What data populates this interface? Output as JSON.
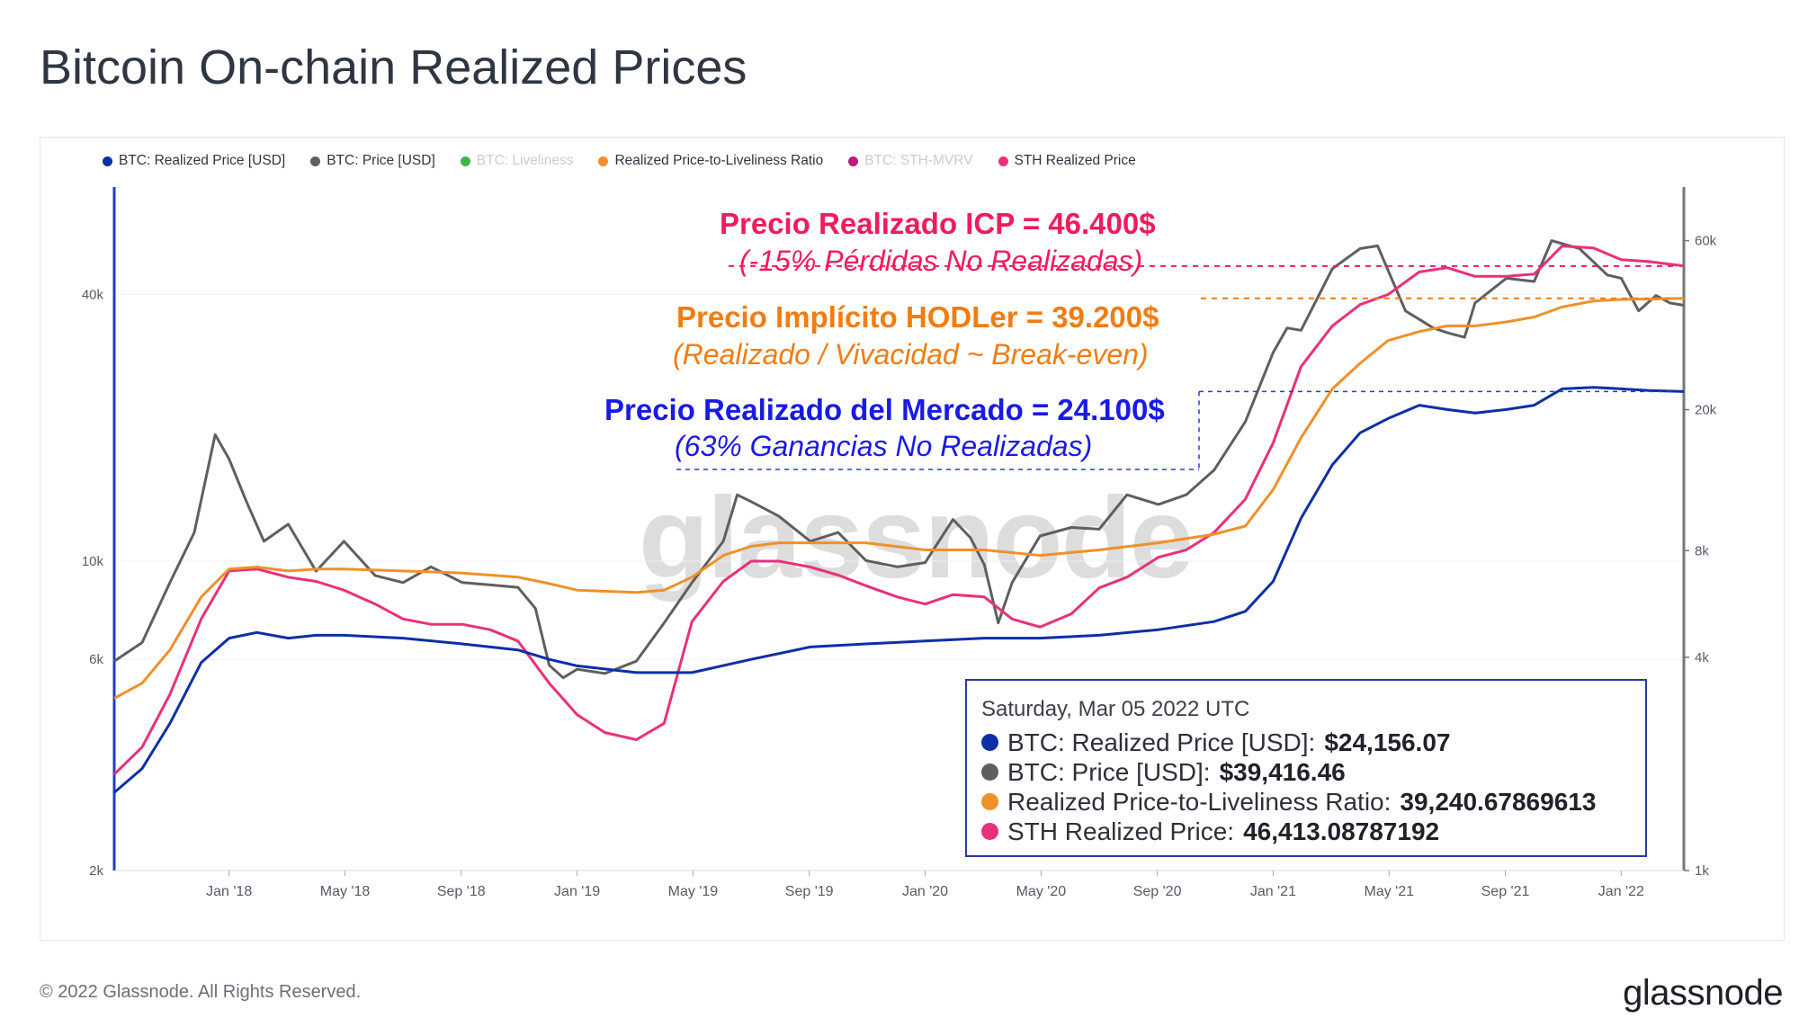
{
  "title": "Bitcoin On-chain Realized Prices",
  "legend": [
    {
      "label": "BTC: Realized Price [USD]",
      "color": "#0d2fa6",
      "active": true
    },
    {
      "label": "BTC: Price [USD]",
      "color": "#5f5f5f",
      "active": true
    },
    {
      "label": "BTC: Liveliness",
      "color": "#3fb34a",
      "active": false
    },
    {
      "label": "Realized Price-to-Liveliness Ratio",
      "color": "#f0902a",
      "active": true
    },
    {
      "label": "BTC: STH-MVRV",
      "color": "#c0177a",
      "active": false
    },
    {
      "label": "STH Realized Price",
      "color": "#e8317a",
      "active": true
    }
  ],
  "annotations": {
    "sth_title": "Precio Realizado ICP = 46.400$",
    "sth_sub": "(-15% Pérdidas No Realizadas)",
    "hodl_title": "Precio Implícito HODLer = 39.200$",
    "hodl_sub": "(Realizado / Vivacidad ~ Break-even)",
    "rp_title": "Precio Realizado del Mercado = 24.100$",
    "rp_sub": "(63% Ganancias No Realizadas)"
  },
  "tooltip": {
    "date": "Saturday, Mar 05 2022 UTC",
    "rows": [
      {
        "label": "BTC: Realized Price [USD]:",
        "value": "$24,156.07",
        "color": "#0d2fa6"
      },
      {
        "label": "BTC: Price [USD]:",
        "value": "$39,416.46",
        "color": "#5f5f5f"
      },
      {
        "label": "Realized Price-to-Liveliness Ratio:",
        "value": "39,240.67869613",
        "color": "#f0902a"
      },
      {
        "label": "STH Realized Price:",
        "value": "46,413.08787192",
        "color": "#e8317a"
      }
    ]
  },
  "watermark": "glassnode",
  "footer": "© 2022 Glassnode. All Rights Reserved.",
  "brand": "glassnode",
  "colors": {
    "realized": "#0d2fa6",
    "price": "#5f5f5f",
    "ratio": "#f0902a",
    "sth": "#e8317a",
    "sth_text": "#ef1c5c",
    "hodl_text": "#f07d12",
    "rp_text": "#1a1ae6"
  },
  "chart_data": {
    "type": "line",
    "title": "Bitcoin On-chain Realized Prices",
    "x_start": 2017.67,
    "x_end": 2022.18,
    "x_ticks": [
      {
        "label": "Jan '18",
        "t": 2018.0
      },
      {
        "label": "May '18",
        "t": 2018.333
      },
      {
        "label": "Sep '18",
        "t": 2018.667
      },
      {
        "label": "Jan '19",
        "t": 2019.0
      },
      {
        "label": "May '19",
        "t": 2019.333
      },
      {
        "label": "Sep '19",
        "t": 2019.667
      },
      {
        "label": "Jan '20",
        "t": 2020.0
      },
      {
        "label": "May '20",
        "t": 2020.333
      },
      {
        "label": "Sep '20",
        "t": 2020.667
      },
      {
        "label": "Jan '21",
        "t": 2021.0
      },
      {
        "label": "May '21",
        "t": 2021.333
      },
      {
        "label": "Sep '21",
        "t": 2021.667
      },
      {
        "label": "Jan '22",
        "t": 2022.0
      }
    ],
    "y_left": {
      "scale": "log",
      "range": [
        2000,
        70000
      ],
      "ticks": [
        {
          "label": "2k",
          "v": 2000
        },
        {
          "label": "6k",
          "v": 6000
        },
        {
          "label": "10k",
          "v": 10000
        },
        {
          "label": "40k",
          "v": 40000
        }
      ]
    },
    "y_right": {
      "scale": "log",
      "range": [
        1000,
        85000
      ],
      "ticks": [
        {
          "label": "1k",
          "v": 1000
        },
        {
          "label": "4k",
          "v": 4000
        },
        {
          "label": "8k",
          "v": 8000
        },
        {
          "label": "20k",
          "v": 20000
        },
        {
          "label": "60k",
          "v": 60000
        }
      ]
    },
    "series": [
      {
        "name": "BTC: Price [USD]",
        "axis": "right",
        "t": [
          2017.67,
          2017.75,
          2017.83,
          2017.9,
          2017.96,
          2018.0,
          2018.05,
          2018.1,
          2018.17,
          2018.25,
          2018.33,
          2018.42,
          2018.5,
          2018.58,
          2018.67,
          2018.75,
          2018.83,
          2018.88,
          2018.92,
          2018.96,
          2019.0,
          2019.08,
          2019.17,
          2019.25,
          2019.33,
          2019.42,
          2019.46,
          2019.5,
          2019.58,
          2019.67,
          2019.75,
          2019.83,
          2019.92,
          2020.0,
          2020.08,
          2020.13,
          2020.17,
          2020.21,
          2020.25,
          2020.33,
          2020.42,
          2020.5,
          2020.58,
          2020.67,
          2020.75,
          2020.83,
          2020.92,
          2021.0,
          2021.04,
          2021.08,
          2021.17,
          2021.25,
          2021.3,
          2021.38,
          2021.46,
          2021.5,
          2021.55,
          2021.58,
          2021.67,
          2021.75,
          2021.8,
          2021.88,
          2021.96,
          2022.0,
          2022.05,
          2022.1,
          2022.14,
          2022.18
        ],
        "values": [
          3900,
          4400,
          6500,
          9000,
          17000,
          14500,
          11000,
          8500,
          9500,
          7000,
          8500,
          6800,
          6500,
          7200,
          6500,
          6400,
          6300,
          5500,
          3800,
          3500,
          3700,
          3600,
          3900,
          5000,
          6500,
          8500,
          11500,
          11000,
          10000,
          8500,
          9000,
          7500,
          7200,
          7400,
          9800,
          8700,
          7300,
          5000,
          6500,
          8800,
          9300,
          9200,
          11500,
          10800,
          11500,
          13500,
          18500,
          29000,
          34000,
          33500,
          50000,
          57000,
          58000,
          38000,
          34000,
          33000,
          32000,
          40000,
          47000,
          46000,
          60000,
          57000,
          48000,
          47000,
          38000,
          42000,
          40000,
          39416
        ]
      },
      {
        "name": "STH Realized Price",
        "axis": "left",
        "t": [
          2017.67,
          2017.75,
          2017.83,
          2017.92,
          2018.0,
          2018.08,
          2018.17,
          2018.25,
          2018.33,
          2018.42,
          2018.5,
          2018.58,
          2018.67,
          2018.75,
          2018.83,
          2018.92,
          2019.0,
          2019.08,
          2019.17,
          2019.25,
          2019.33,
          2019.42,
          2019.5,
          2019.58,
          2019.67,
          2019.75,
          2019.83,
          2019.92,
          2020.0,
          2020.08,
          2020.17,
          2020.25,
          2020.33,
          2020.42,
          2020.5,
          2020.58,
          2020.67,
          2020.75,
          2020.83,
          2020.92,
          2021.0,
          2021.08,
          2021.17,
          2021.25,
          2021.33,
          2021.42,
          2021.5,
          2021.58,
          2021.67,
          2021.75,
          2021.83,
          2021.92,
          2022.0,
          2022.08,
          2022.18
        ],
        "values": [
          3300,
          3800,
          5000,
          7400,
          9500,
          9600,
          9200,
          9000,
          8600,
          8000,
          7400,
          7200,
          7200,
          7000,
          6600,
          5300,
          4500,
          4100,
          3950,
          4300,
          7300,
          9000,
          10000,
          10000,
          9700,
          9300,
          8800,
          8300,
          8000,
          8400,
          8300,
          7400,
          7100,
          7600,
          8700,
          9200,
          10200,
          10600,
          11600,
          13800,
          18500,
          27500,
          34000,
          38000,
          40000,
          45000,
          46000,
          44000,
          44000,
          44500,
          51500,
          51000,
          48000,
          47500,
          46413
        ]
      },
      {
        "name": "Realized Price-to-Liveliness Ratio",
        "axis": "left",
        "t": [
          2017.67,
          2017.75,
          2017.83,
          2017.92,
          2018.0,
          2018.08,
          2018.17,
          2018.25,
          2018.33,
          2018.5,
          2018.67,
          2018.83,
          2018.92,
          2019.0,
          2019.17,
          2019.25,
          2019.33,
          2019.42,
          2019.5,
          2019.58,
          2019.67,
          2019.83,
          2020.0,
          2020.17,
          2020.33,
          2020.5,
          2020.67,
          2020.83,
          2020.92,
          2021.0,
          2021.08,
          2021.17,
          2021.25,
          2021.33,
          2021.42,
          2021.5,
          2021.58,
          2021.67,
          2021.75,
          2021.83,
          2021.92,
          2022.0,
          2022.08,
          2022.18
        ],
        "values": [
          4900,
          5300,
          6300,
          8300,
          9600,
          9700,
          9500,
          9600,
          9600,
          9500,
          9400,
          9200,
          8900,
          8600,
          8500,
          8600,
          9200,
          10300,
          10800,
          11000,
          11000,
          11000,
          10600,
          10600,
          10300,
          10600,
          11000,
          11500,
          12000,
          14500,
          19000,
          24500,
          28000,
          31500,
          33000,
          34000,
          34000,
          34700,
          35600,
          37500,
          38700,
          39000,
          39100,
          39240
        ]
      },
      {
        "name": "BTC: Realized Price [USD]",
        "axis": "left",
        "t": [
          2017.67,
          2017.75,
          2017.83,
          2017.92,
          2018.0,
          2018.08,
          2018.17,
          2018.25,
          2018.33,
          2018.5,
          2018.67,
          2018.83,
          2018.92,
          2019.0,
          2019.17,
          2019.33,
          2019.5,
          2019.67,
          2019.83,
          2020.0,
          2020.17,
          2020.33,
          2020.5,
          2020.67,
          2020.83,
          2020.92,
          2021.0,
          2021.08,
          2021.17,
          2021.25,
          2021.33,
          2021.42,
          2021.5,
          2021.58,
          2021.67,
          2021.75,
          2021.83,
          2021.92,
          2022.0,
          2022.08,
          2022.18
        ],
        "values": [
          3000,
          3400,
          4300,
          5900,
          6700,
          6900,
          6700,
          6800,
          6800,
          6700,
          6500,
          6300,
          6000,
          5800,
          5600,
          5600,
          6000,
          6400,
          6500,
          6600,
          6700,
          6700,
          6800,
          7000,
          7300,
          7700,
          9000,
          12500,
          16500,
          19500,
          21000,
          22500,
          22000,
          21600,
          22000,
          22500,
          24500,
          24700,
          24500,
          24300,
          24156
        ]
      }
    ]
  }
}
